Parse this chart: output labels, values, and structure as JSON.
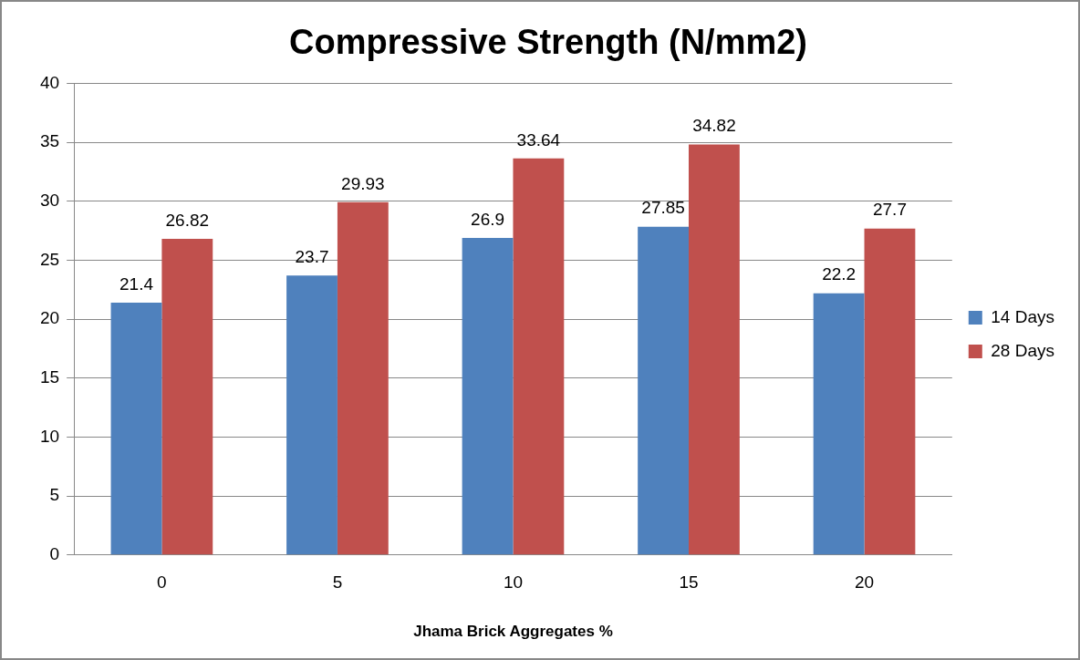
{
  "chart_data": {
    "type": "bar",
    "title": "Compressive Strength (N/mm2)",
    "xlabel": "Jhama Brick Aggregates %",
    "categories": [
      "0",
      "5",
      "10",
      "15",
      "20"
    ],
    "series": [
      {
        "name": "14 Days",
        "color": "#4f81bd",
        "values": [
          21.4,
          23.7,
          26.9,
          27.85,
          22.2
        ]
      },
      {
        "name": "28 Days",
        "color": "#c0504d",
        "values": [
          26.82,
          29.93,
          33.64,
          34.82,
          27.7
        ]
      }
    ],
    "ylim": [
      0,
      40
    ],
    "yticks": [
      0,
      5,
      10,
      15,
      20,
      25,
      30,
      35,
      40
    ],
    "grid": "y",
    "legend": "right",
    "data_labels": true
  }
}
